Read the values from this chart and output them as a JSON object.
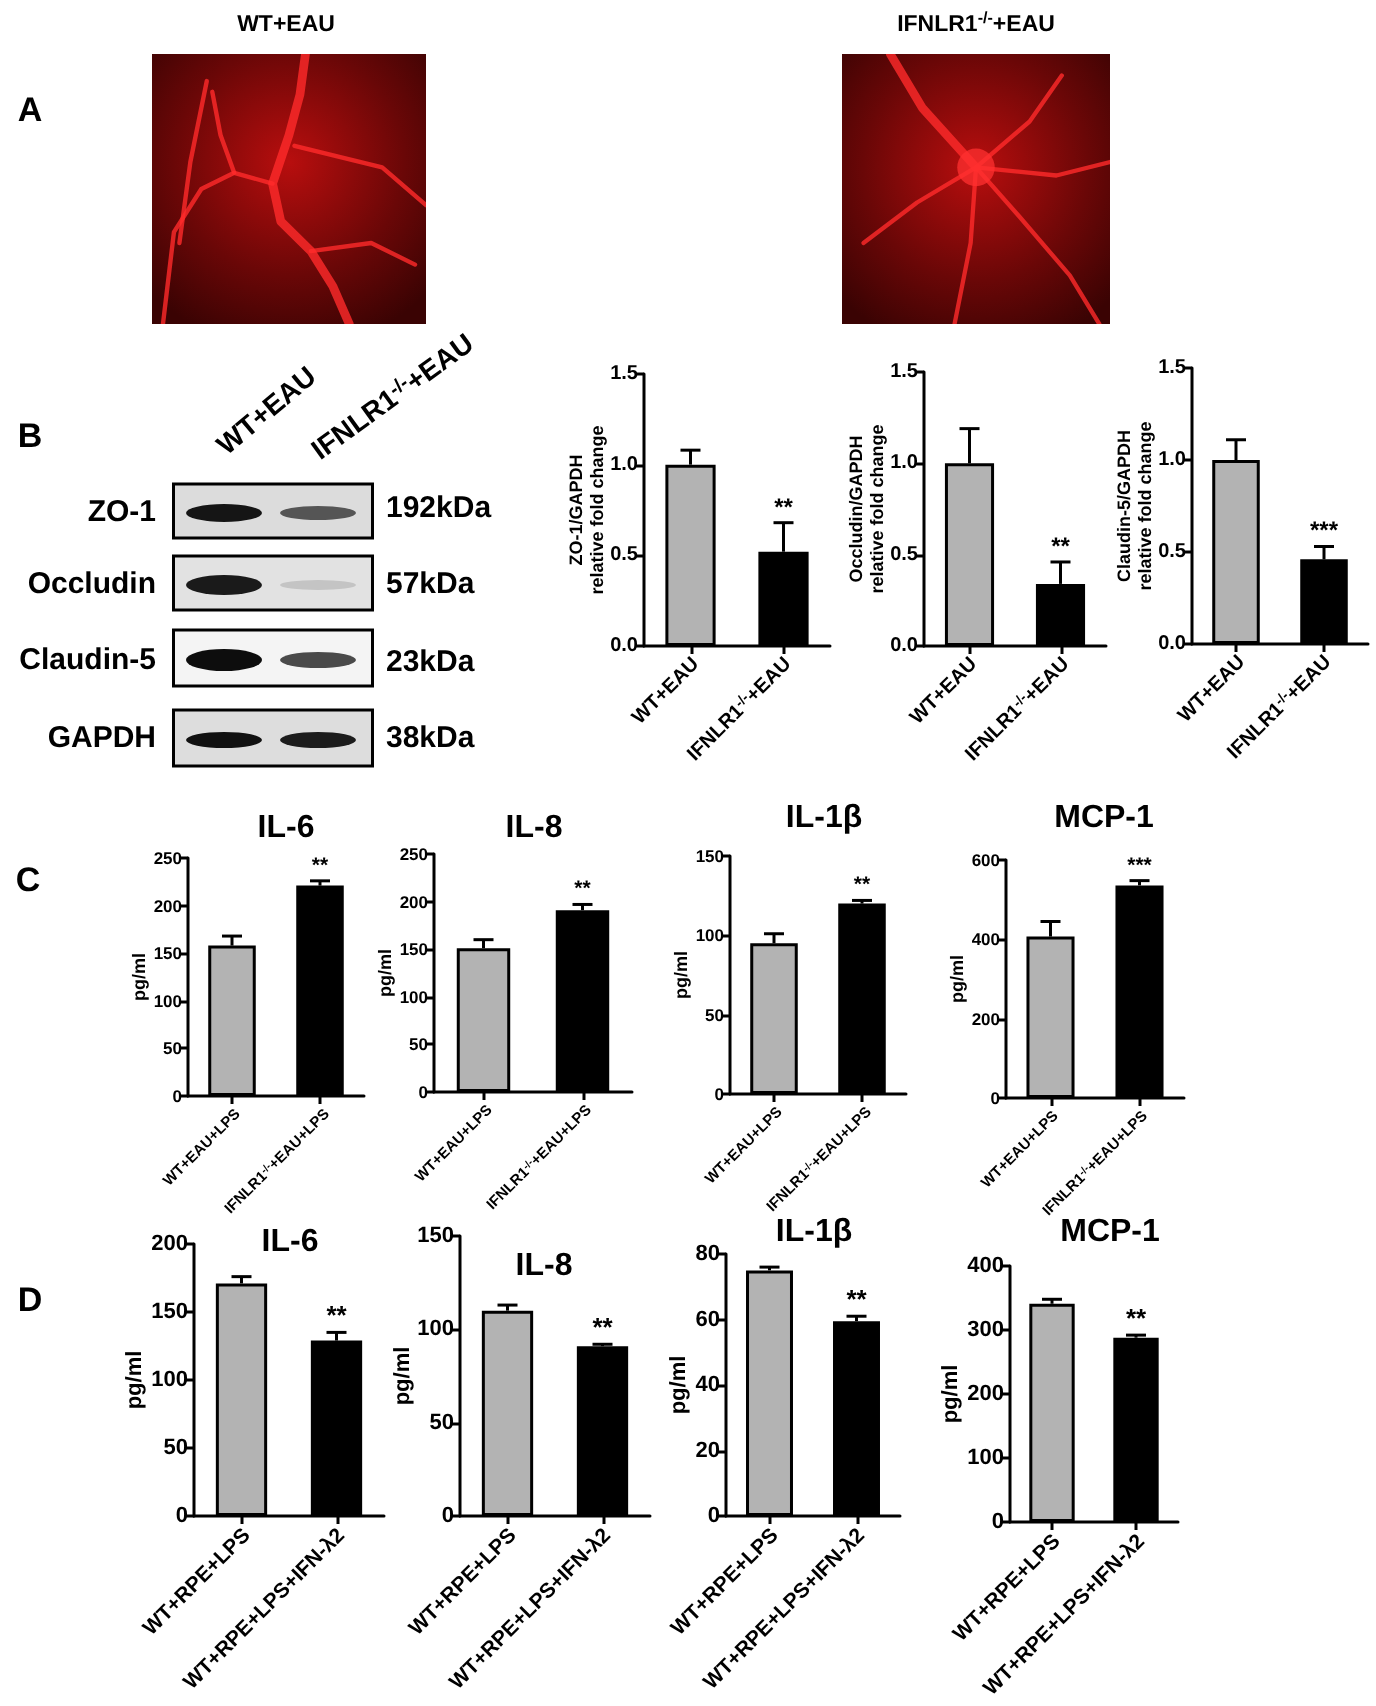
{
  "chart_data": [
    {
      "type": "other",
      "title": "WT+EAU",
      "annotations": [
        "A"
      ]
    },
    {
      "type": "other",
      "title": "IFNLR1$^{-/-}$+EAU"
    },
    {
      "type": "other",
      "annotations": [
        "B",
        "WT+EAU",
        "IFNLR1$^{-/-}$+EAU",
        "ZO-1",
        "Occludin",
        "Claudin-5",
        "GAPDH",
        "192kDa",
        "57kDa",
        "23kDa",
        "38kDa"
      ]
    },
    {
      "type": "bar",
      "categories": [
        "WT+EAU",
        "IFNLR1$^{-/-}$+EAU"
      ],
      "values": [
        1.0,
        0.52
      ],
      "colors": [
        "#b3b3b3",
        "#000000"
      ],
      "errors": [
        [
          1.0,
          1.08
        ],
        [
          0.52,
          0.68
        ]
      ],
      "ylabel": "ZO-1/GAPDH\nrelative fold change",
      "ylim": [
        0,
        1.5
      ],
      "yticks": [
        {
          "value": 0,
          "label": "0.0"
        },
        {
          "value": 0.5,
          "label": "0.5"
        },
        {
          "value": 1,
          "label": "1.0"
        },
        {
          "value": 1.5,
          "label": "1.5"
        }
      ],
      "annotations": [
        "**"
      ]
    },
    {
      "type": "bar",
      "categories": [
        "WT+EAU",
        "IFNLR1$^{-/-}$+EAU"
      ],
      "values": [
        1.0,
        0.34
      ],
      "colors": [
        "#b3b3b3",
        "#000000"
      ],
      "errors": [
        [
          1.0,
          1.19
        ],
        [
          0.34,
          0.46
        ]
      ],
      "ylabel": "Occludin/GAPDH\nrelative fold change",
      "ylim": [
        0,
        1.5
      ],
      "yticks": [
        {
          "value": 0,
          "label": "0.0"
        },
        {
          "value": 0.5,
          "label": "0.5"
        },
        {
          "value": 1,
          "label": "1.0"
        },
        {
          "value": 1.5,
          "label": "1.5"
        }
      ],
      "annotations": [
        "**"
      ]
    },
    {
      "type": "bar",
      "categories": [
        "WT+EAU",
        "IFNLR1$^{-/-}$+EAU"
      ],
      "values": [
        1.0,
        0.46
      ],
      "colors": [
        "#b3b3b3",
        "#000000"
      ],
      "errors": [
        [
          1.0,
          1.11
        ],
        [
          0.46,
          0.53
        ]
      ],
      "ylabel": "Claudin-5/GAPDH\nrelative fold change",
      "ylim": [
        0,
        1.5
      ],
      "yticks": [
        {
          "value": 0,
          "label": "0.0"
        },
        {
          "value": 0.5,
          "label": "0.5"
        },
        {
          "value": 1,
          "label": "1.0"
        },
        {
          "value": 1.5,
          "label": "1.5"
        }
      ],
      "annotations": [
        "***"
      ]
    },
    {
      "type": "bar",
      "title": "IL-6",
      "categories": [
        "WT+EAU+LPS",
        "IFNLR1$^{-/-}$+EAU+LPS"
      ],
      "values": [
        158,
        221
      ],
      "colors": [
        "#b3b3b3",
        "#000000"
      ],
      "errors": [
        [
          158,
          168
        ],
        [
          221,
          226
        ]
      ],
      "ylabel": "pg/ml",
      "ylim": [
        0,
        250
      ],
      "yticks": [
        0,
        50,
        100,
        150,
        200,
        250
      ],
      "annotations": [
        "C",
        "**"
      ]
    },
    {
      "type": "bar",
      "title": "IL-8",
      "categories": [
        "WT+EAU+LPS",
        "IFNLR1$^{-/-}$+EAU+LPS"
      ],
      "values": [
        151,
        191
      ],
      "colors": [
        "#b3b3b3",
        "#000000"
      ],
      "errors": [
        [
          151,
          160
        ],
        [
          191,
          197
        ]
      ],
      "ylabel": "pg/ml",
      "ylim": [
        0,
        250
      ],
      "yticks": [
        0,
        50,
        100,
        150,
        200,
        250
      ],
      "annotations": [
        "**"
      ]
    },
    {
      "type": "bar",
      "title": "IL-1β",
      "categories": [
        "WT+EAU+LPS",
        "IFNLR1$^{-/-}$+EAU+LPS"
      ],
      "values": [
        95,
        120
      ],
      "colors": [
        "#b3b3b3",
        "#000000"
      ],
      "errors": [
        [
          95,
          101
        ],
        [
          120,
          122
        ]
      ],
      "ylabel": "pg/ml",
      "ylim": [
        0,
        150
      ],
      "yticks": [
        0,
        50,
        100,
        150
      ],
      "annotations": [
        "**"
      ]
    },
    {
      "type": "bar",
      "title": "MCP-1",
      "categories": [
        "WT+EAU+LPS",
        "IFNLR1$^{-/-}$+EAU+LPS"
      ],
      "values": [
        407,
        536
      ],
      "colors": [
        "#b3b3b3",
        "#000000"
      ],
      "errors": [
        [
          407,
          445
        ],
        [
          536,
          548
        ]
      ],
      "ylabel": "pg/ml",
      "ylim": [
        0,
        600
      ],
      "yticks": [
        0,
        200,
        400,
        600
      ],
      "annotations": [
        "***"
      ]
    },
    {
      "type": "bar",
      "title": "IL-6",
      "categories": [
        "WT+RPE+LPS",
        "WT+RPE+LPS+IFN-λ2"
      ],
      "values": [
        171,
        129
      ],
      "colors": [
        "#b3b3b3",
        "#000000"
      ],
      "errors": [
        [
          171,
          176
        ],
        [
          129,
          135
        ]
      ],
      "ylabel": "pg/ml",
      "ylim": [
        0,
        200
      ],
      "yticks": [
        0,
        50,
        100,
        150,
        200
      ],
      "annotations": [
        "D",
        "**"
      ]
    },
    {
      "type": "bar",
      "title": "IL-8",
      "categories": [
        "WT+RPE+LPS",
        "WT+RPE+LPS+IFN-λ2"
      ],
      "values": [
        110,
        91
      ],
      "colors": [
        "#b3b3b3",
        "#000000"
      ],
      "errors": [
        [
          110,
          113
        ],
        [
          91,
          92
        ]
      ],
      "ylabel": "pg/ml",
      "ylim": [
        0,
        150
      ],
      "yticks": [
        0,
        50,
        100,
        150
      ],
      "annotations": [
        "**"
      ]
    },
    {
      "type": "bar",
      "title": "IL-1β",
      "categories": [
        "WT+RPE+LPS",
        "WT+RPE+LPS+IFN-λ2"
      ],
      "values": [
        75,
        59.5
      ],
      "colors": [
        "#b3b3b3",
        "#000000"
      ],
      "errors": [
        [
          75,
          76
        ],
        [
          59.5,
          61
        ]
      ],
      "ylabel": "pg/ml",
      "ylim": [
        0,
        80
      ],
      "yticks": [
        0,
        20,
        40,
        60,
        80
      ],
      "annotations": [
        "**"
      ]
    },
    {
      "type": "bar",
      "title": "MCP-1",
      "categories": [
        "WT+RPE+LPS",
        "WT+RPE+LPS+IFN-λ2"
      ],
      "values": [
        341,
        288
      ],
      "colors": [
        "#b3b3b3",
        "#000000"
      ],
      "errors": [
        [
          341,
          348
        ],
        [
          288,
          292
        ]
      ],
      "ylabel": "pg/ml",
      "ylim": [
        0,
        400
      ],
      "yticks": [
        0,
        100,
        200,
        300,
        400
      ],
      "annotations": [
        "**"
      ]
    }
  ]
}
